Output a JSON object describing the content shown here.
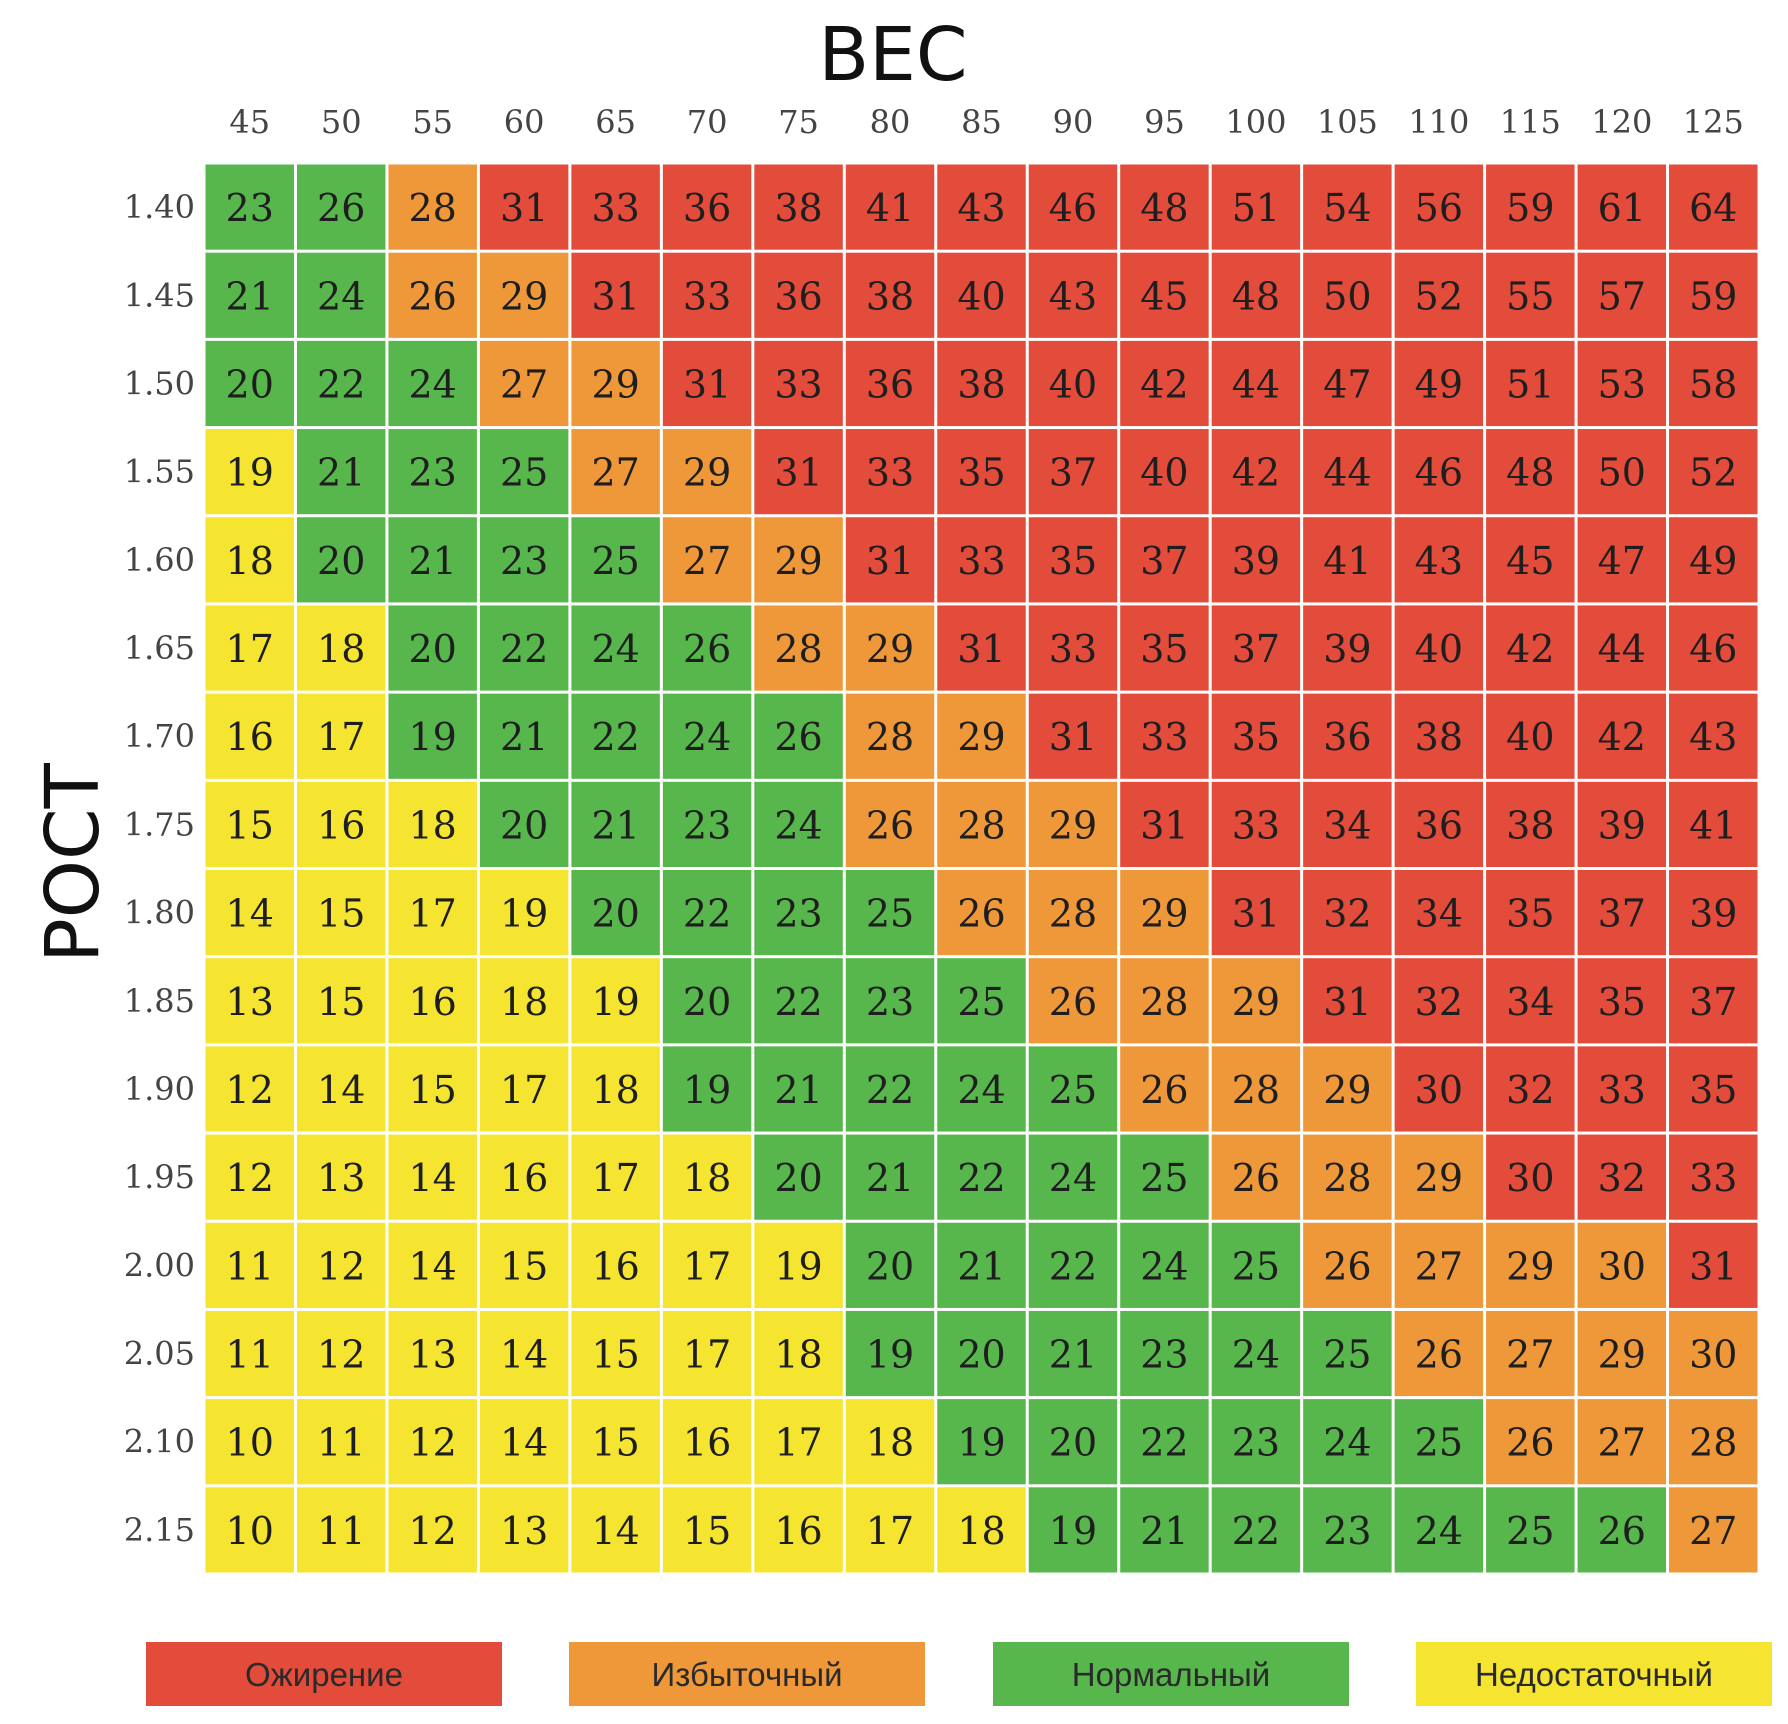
{
  "chart_data": {
    "type": "heatmap",
    "xlabel": "ВЕС",
    "ylabel": "РОСТ",
    "x": [
      45,
      50,
      55,
      60,
      65,
      70,
      75,
      80,
      85,
      90,
      95,
      100,
      105,
      110,
      115,
      120,
      125
    ],
    "y": [
      "1.40",
      "1.45",
      "1.50",
      "1.55",
      "1.60",
      "1.65",
      "1.70",
      "1.75",
      "1.80",
      "1.85",
      "1.90",
      "1.95",
      "2.00",
      "2.05",
      "2.10",
      "2.15"
    ],
    "values": [
      [
        23,
        26,
        28,
        31,
        33,
        36,
        38,
        41,
        43,
        46,
        48,
        51,
        54,
        56,
        59,
        61,
        64
      ],
      [
        21,
        24,
        26,
        29,
        31,
        33,
        36,
        38,
        40,
        43,
        45,
        48,
        50,
        52,
        55,
        57,
        59
      ],
      [
        20,
        22,
        24,
        27,
        29,
        31,
        33,
        36,
        38,
        40,
        42,
        44,
        47,
        49,
        51,
        53,
        58
      ],
      [
        19,
        21,
        23,
        25,
        27,
        29,
        31,
        33,
        35,
        37,
        40,
        42,
        44,
        46,
        48,
        50,
        52
      ],
      [
        18,
        20,
        21,
        23,
        25,
        27,
        29,
        31,
        33,
        35,
        37,
        39,
        41,
        43,
        45,
        47,
        49
      ],
      [
        17,
        18,
        20,
        22,
        24,
        26,
        28,
        29,
        31,
        33,
        35,
        37,
        39,
        40,
        42,
        44,
        46
      ],
      [
        16,
        17,
        19,
        21,
        22,
        24,
        26,
        28,
        29,
        31,
        33,
        35,
        36,
        38,
        40,
        42,
        43
      ],
      [
        15,
        16,
        18,
        20,
        21,
        23,
        24,
        26,
        28,
        29,
        31,
        33,
        34,
        36,
        38,
        39,
        41
      ],
      [
        14,
        15,
        17,
        19,
        20,
        22,
        23,
        25,
        26,
        28,
        29,
        31,
        32,
        34,
        35,
        37,
        39
      ],
      [
        13,
        15,
        16,
        18,
        19,
        20,
        22,
        23,
        25,
        26,
        28,
        29,
        31,
        32,
        34,
        35,
        37
      ],
      [
        12,
        14,
        15,
        17,
        18,
        19,
        21,
        22,
        24,
        25,
        26,
        28,
        29,
        30,
        32,
        33,
        35
      ],
      [
        12,
        13,
        14,
        16,
        17,
        18,
        20,
        21,
        22,
        24,
        25,
        26,
        28,
        29,
        30,
        32,
        33
      ],
      [
        11,
        12,
        14,
        15,
        16,
        17,
        19,
        20,
        21,
        22,
        24,
        25,
        26,
        27,
        29,
        30,
        31
      ],
      [
        11,
        12,
        13,
        14,
        15,
        17,
        18,
        19,
        20,
        21,
        23,
        24,
        25,
        26,
        27,
        29,
        30
      ],
      [
        10,
        11,
        12,
        14,
        15,
        16,
        17,
        18,
        19,
        20,
        22,
        23,
        24,
        25,
        26,
        27,
        28
      ],
      [
        10,
        11,
        12,
        13,
        14,
        15,
        16,
        17,
        18,
        19,
        21,
        22,
        23,
        24,
        25,
        26,
        27
      ]
    ],
    "categories_map": [
      [
        "N",
        "N",
        "I",
        "O",
        "O",
        "O",
        "O",
        "O",
        "O",
        "O",
        "O",
        "O",
        "O",
        "O",
        "O",
        "O",
        "O"
      ],
      [
        "N",
        "N",
        "I",
        "I",
        "O",
        "O",
        "O",
        "O",
        "O",
        "O",
        "O",
        "O",
        "O",
        "O",
        "O",
        "O",
        "O"
      ],
      [
        "N",
        "N",
        "N",
        "I",
        "I",
        "O",
        "O",
        "O",
        "O",
        "O",
        "O",
        "O",
        "O",
        "O",
        "O",
        "O",
        "O"
      ],
      [
        "U",
        "N",
        "N",
        "N",
        "I",
        "I",
        "O",
        "O",
        "O",
        "O",
        "O",
        "O",
        "O",
        "O",
        "O",
        "O",
        "O"
      ],
      [
        "U",
        "N",
        "N",
        "N",
        "N",
        "I",
        "I",
        "O",
        "O",
        "O",
        "O",
        "O",
        "O",
        "O",
        "O",
        "O",
        "O"
      ],
      [
        "U",
        "U",
        "N",
        "N",
        "N",
        "N",
        "I",
        "I",
        "O",
        "O",
        "O",
        "O",
        "O",
        "O",
        "O",
        "O",
        "O"
      ],
      [
        "U",
        "U",
        "N",
        "N",
        "N",
        "N",
        "N",
        "I",
        "I",
        "O",
        "O",
        "O",
        "O",
        "O",
        "O",
        "O",
        "O"
      ],
      [
        "U",
        "U",
        "U",
        "N",
        "N",
        "N",
        "N",
        "I",
        "I",
        "I",
        "O",
        "O",
        "O",
        "O",
        "O",
        "O",
        "O"
      ],
      [
        "U",
        "U",
        "U",
        "U",
        "N",
        "N",
        "N",
        "N",
        "I",
        "I",
        "I",
        "O",
        "O",
        "O",
        "O",
        "O",
        "O"
      ],
      [
        "U",
        "U",
        "U",
        "U",
        "U",
        "N",
        "N",
        "N",
        "N",
        "I",
        "I",
        "I",
        "O",
        "O",
        "O",
        "O",
        "O"
      ],
      [
        "U",
        "U",
        "U",
        "U",
        "U",
        "N",
        "N",
        "N",
        "N",
        "N",
        "I",
        "I",
        "I",
        "O",
        "O",
        "O",
        "O"
      ],
      [
        "U",
        "U",
        "U",
        "U",
        "U",
        "U",
        "N",
        "N",
        "N",
        "N",
        "N",
        "I",
        "I",
        "I",
        "O",
        "O",
        "O"
      ],
      [
        "U",
        "U",
        "U",
        "U",
        "U",
        "U",
        "U",
        "N",
        "N",
        "N",
        "N",
        "N",
        "I",
        "I",
        "I",
        "I",
        "O"
      ],
      [
        "U",
        "U",
        "U",
        "U",
        "U",
        "U",
        "U",
        "N",
        "N",
        "N",
        "N",
        "N",
        "N",
        "I",
        "I",
        "I",
        "I"
      ],
      [
        "U",
        "U",
        "U",
        "U",
        "U",
        "U",
        "U",
        "U",
        "N",
        "N",
        "N",
        "N",
        "N",
        "N",
        "I",
        "I",
        "I"
      ],
      [
        "U",
        "U",
        "U",
        "U",
        "U",
        "U",
        "U",
        "U",
        "U",
        "N",
        "N",
        "N",
        "N",
        "N",
        "N",
        "N",
        "I"
      ]
    ],
    "legend": [
      {
        "key": "O",
        "label": "Ожирение",
        "color": "#e34b3b"
      },
      {
        "key": "I",
        "label": "Избыточный",
        "color": "#ef9839"
      },
      {
        "key": "N",
        "label": "Нормальный",
        "color": "#57b74c"
      },
      {
        "key": "U",
        "label": "Недостаточный",
        "color": "#f5e530"
      }
    ],
    "legend_placement": "bottom"
  }
}
